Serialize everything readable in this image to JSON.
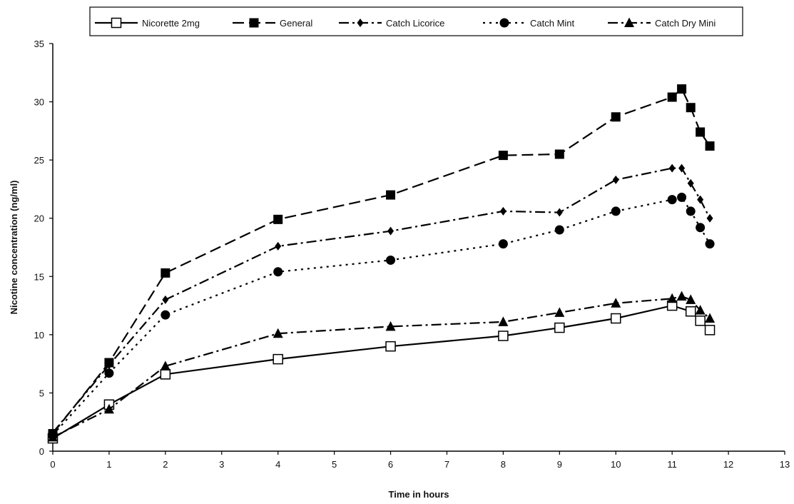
{
  "chart_data": {
    "type": "line",
    "xlabel": "Time in hours",
    "ylabel": "Nicotine concentration (ng/ml)",
    "xlim": [
      0,
      13
    ],
    "ylim": [
      0,
      35
    ],
    "xticks": [
      "0",
      "1",
      "2",
      "3",
      "4",
      "5",
      "6",
      "7",
      "8",
      "9",
      "10",
      "11",
      "12",
      "13"
    ],
    "yticks": [
      "0",
      "5",
      "10",
      "15",
      "20",
      "25",
      "30",
      "35"
    ],
    "grid": false,
    "legend_position": "top",
    "series": [
      {
        "name": "Nicorette 2mg",
        "marker": "open-square",
        "dash": "solid",
        "x": [
          0,
          1,
          2,
          4,
          6,
          8,
          9,
          10,
          11,
          11.33,
          11.5,
          11.67
        ],
        "y": [
          1.1,
          4.0,
          6.6,
          7.9,
          9.0,
          9.9,
          10.6,
          11.4,
          12.5,
          12.0,
          11.2,
          10.4
        ]
      },
      {
        "name": "General",
        "marker": "filled-square",
        "dash": "long-dash",
        "x": [
          0,
          1,
          2,
          4,
          6,
          8,
          9,
          10,
          11,
          11.17,
          11.33,
          11.5,
          11.67
        ],
        "y": [
          1.5,
          7.6,
          15.3,
          19.9,
          22.0,
          25.4,
          25.5,
          28.7,
          30.4,
          31.1,
          29.5,
          27.4,
          26.2
        ]
      },
      {
        "name": "Catch Licorice",
        "marker": "filled-diamond",
        "dash": "dash-dot",
        "x": [
          0,
          1,
          2,
          4,
          6,
          8,
          9,
          10,
          11,
          11.17,
          11.33,
          11.5,
          11.67
        ],
        "y": [
          1.6,
          7.4,
          13.0,
          17.6,
          18.9,
          20.6,
          20.5,
          23.3,
          24.3,
          24.3,
          23.0,
          21.6,
          20.0
        ]
      },
      {
        "name": "Catch Mint",
        "marker": "filled-circle",
        "dash": "dotted",
        "x": [
          0,
          1,
          2,
          4,
          6,
          8,
          9,
          10,
          11,
          11.17,
          11.33,
          11.5,
          11.67
        ],
        "y": [
          1.4,
          6.7,
          11.7,
          15.4,
          16.4,
          17.8,
          19.0,
          20.6,
          21.6,
          21.8,
          20.6,
          19.2,
          17.8
        ]
      },
      {
        "name": "Catch Dry Mini",
        "marker": "filled-triangle",
        "dash": "dash-dot",
        "x": [
          0,
          1,
          2,
          4,
          6,
          8,
          9,
          10,
          11,
          11.17,
          11.33,
          11.5,
          11.67
        ],
        "y": [
          1.2,
          3.6,
          7.3,
          10.1,
          10.7,
          11.1,
          11.9,
          12.7,
          13.1,
          13.3,
          13.0,
          12.1,
          11.4
        ]
      }
    ]
  }
}
